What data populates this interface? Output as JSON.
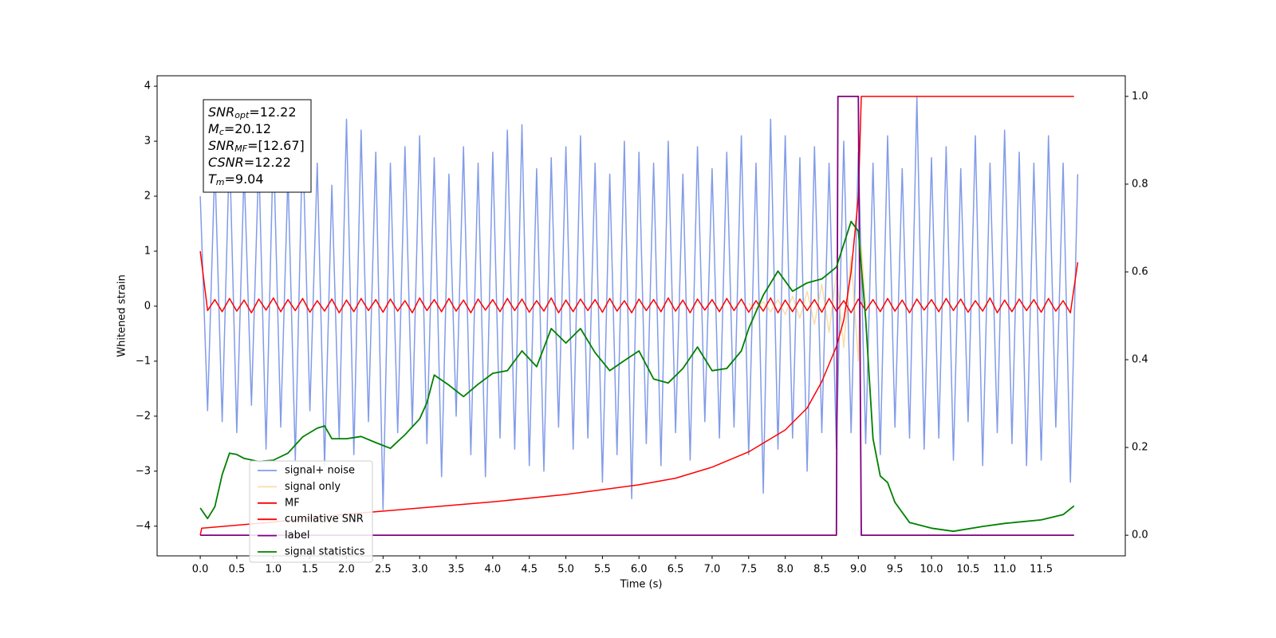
{
  "chart_data": {
    "type": "line",
    "xlabel": "Time (s)",
    "ylabel": "Whitened strain",
    "xlim": [
      -0.59,
      12.65
    ],
    "ylim": [
      -4.54,
      4.19
    ],
    "y2lim": [
      -0.047,
      1.047
    ],
    "xticks": [
      {
        "value": 0,
        "label": "0.0"
      },
      {
        "value": 0.5,
        "label": "0.5"
      },
      {
        "value": 1,
        "label": "1.0"
      },
      {
        "value": 1.5,
        "label": "1.5"
      },
      {
        "value": 2,
        "label": "2.0"
      },
      {
        "value": 2.5,
        "label": "2.5"
      },
      {
        "value": 3,
        "label": "3.0"
      },
      {
        "value": 3.5,
        "label": "3.5"
      },
      {
        "value": 4,
        "label": "4.0"
      },
      {
        "value": 4.5,
        "label": "4.5"
      },
      {
        "value": 5,
        "label": "5.0"
      },
      {
        "value": 5.5,
        "label": "5.5"
      },
      {
        "value": 6,
        "label": "6.0"
      },
      {
        "value": 6.5,
        "label": "6.5"
      },
      {
        "value": 7,
        "label": "7.0"
      },
      {
        "value": 7.5,
        "label": "7.5"
      },
      {
        "value": 8,
        "label": "8.0"
      },
      {
        "value": 8.5,
        "label": "8.5"
      },
      {
        "value": 9,
        "label": "9.0"
      },
      {
        "value": 9.5,
        "label": "9.5"
      },
      {
        "value": 10,
        "label": "10.0"
      },
      {
        "value": 10.5,
        "label": "10.5"
      },
      {
        "value": 11,
        "label": "11.0"
      },
      {
        "value": 11.5,
        "label": "11.5"
      }
    ],
    "yticks": [
      {
        "value": -4,
        "label": "−4"
      },
      {
        "value": -3,
        "label": "−3"
      },
      {
        "value": -2,
        "label": "−2"
      },
      {
        "value": -1,
        "label": "−1"
      },
      0,
      1,
      2,
      3,
      4
    ],
    "y2ticks": [
      {
        "value": 0,
        "label": "0.0"
      },
      {
        "value": 0.2,
        "label": "0.2"
      },
      {
        "value": 0.4,
        "label": "0.4"
      },
      {
        "value": 0.6,
        "label": "0.6"
      },
      {
        "value": 0.8,
        "label": "0.8"
      },
      {
        "value": 1,
        "label": "1.0"
      }
    ],
    "annotation": [
      {
        "var": "SNR",
        "sub": "opt",
        "text": "=12.22"
      },
      {
        "var": "M",
        "sub": "c",
        "text": "=20.12"
      },
      {
        "var": "SNR",
        "sub": "MF",
        "text": "=[12.67]"
      },
      {
        "var": "CSNR",
        "text": "=12.22"
      },
      {
        "var": "T",
        "sub": "m",
        "text": "=9.04"
      }
    ],
    "x": [
      0,
      0.1,
      0.2,
      0.3,
      0.4,
      0.5,
      0.6,
      0.7,
      0.8,
      0.9,
      1,
      1.1,
      1.2,
      1.3,
      1.4,
      1.5,
      1.6,
      1.7,
      1.8,
      1.9,
      2,
      2.1,
      2.2,
      2.3,
      2.4,
      2.5,
      2.6,
      2.7,
      2.8,
      2.9,
      3,
      3.1,
      3.2,
      3.3,
      3.4,
      3.5,
      3.6,
      3.7,
      3.8,
      3.9,
      4,
      4.1,
      4.2,
      4.3,
      4.4,
      4.5,
      4.6,
      4.7,
      4.8,
      4.9,
      5,
      5.1,
      5.2,
      5.3,
      5.4,
      5.5,
      5.6,
      5.7,
      5.8,
      5.9,
      6,
      6.1,
      6.2,
      6.3,
      6.4,
      6.5,
      6.6,
      6.7,
      6.8,
      6.9,
      7,
      7.1,
      7.2,
      7.3,
      7.4,
      7.5,
      7.6,
      7.7,
      7.8,
      7.9,
      8,
      8.1,
      8.2,
      8.3,
      8.4,
      8.5,
      8.6,
      8.7,
      8.8,
      8.9,
      9,
      9.1,
      9.2,
      9.3,
      9.4,
      9.5,
      9.6,
      9.7,
      9.8,
      9.9,
      10,
      10.1,
      10.2,
      10.3,
      10.4,
      10.5,
      10.6,
      10.7,
      10.8,
      10.9,
      11,
      11.1,
      11.2,
      11.3,
      11.4,
      11.5,
      11.6,
      11.7,
      11.8,
      11.9,
      12
    ],
    "series": [
      {
        "name": "signal+ noise",
        "color": "#7b96e8",
        "values": [
          2.0,
          -1.9,
          2.6,
          -2.1,
          2.9,
          -2.3,
          2.5,
          -1.8,
          2.7,
          -2.6,
          3.0,
          -2.2,
          2.4,
          -2.8,
          3.1,
          -1.9,
          2.6,
          -2.9,
          2.2,
          -2.4,
          3.4,
          -2.7,
          3.2,
          -2.1,
          2.8,
          -3.7,
          2.6,
          -2.3,
          2.9,
          -2.2,
          3.1,
          -2.5,
          2.7,
          -3.1,
          2.4,
          -2.0,
          2.9,
          -2.7,
          2.6,
          -3.1,
          2.8,
          -2.4,
          3.2,
          -2.6,
          3.3,
          -2.9,
          2.5,
          -3.0,
          2.7,
          -2.2,
          2.9,
          -2.6,
          3.1,
          -2.4,
          2.6,
          -3.2,
          2.4,
          -2.7,
          3.0,
          -3.5,
          2.8,
          -2.5,
          2.6,
          -2.9,
          3.0,
          -2.3,
          2.4,
          -2.8,
          2.9,
          -2.1,
          2.5,
          -2.4,
          2.8,
          -2.2,
          3.1,
          -2.7,
          2.6,
          -3.4,
          3.4,
          -2.6,
          3.1,
          -2.4,
          2.7,
          -3.0,
          2.9,
          -2.3,
          2.6,
          -2.6,
          3.0,
          -2.3,
          2.8,
          -2.5,
          2.6,
          -2.7,
          3.1,
          -2.2,
          2.5,
          -2.4,
          3.8,
          -2.6,
          2.7,
          -2.4,
          2.9,
          -2.8,
          2.5,
          -2.1,
          3.1,
          -2.9,
          2.6,
          -2.3,
          3.2,
          -2.5,
          2.8,
          -2.9,
          2.6,
          -2.8,
          3.1,
          -2.2,
          2.6,
          -3.2,
          2.4
        ]
      },
      {
        "name": "signal only",
        "color": "#f5c66a",
        "x": [
          7.5,
          7.6,
          7.7,
          7.8,
          7.9,
          8,
          8.1,
          8.2,
          8.3,
          8.4,
          8.5,
          8.6,
          8.7,
          8.8,
          8.9,
          9,
          9.04,
          9.1
        ],
        "values": [
          0.05,
          -0.06,
          0.08,
          -0.1,
          0.12,
          -0.15,
          0.18,
          -0.22,
          0.27,
          -0.33,
          0.4,
          -0.48,
          0.6,
          -0.75,
          0.9,
          -1.0,
          1.1,
          0
        ]
      },
      {
        "name": "MF",
        "color": "#ff0000",
        "values": [
          1.0,
          -0.08,
          0.12,
          -0.1,
          0.14,
          -0.09,
          0.11,
          -0.12,
          0.13,
          -0.07,
          0.15,
          -0.1,
          0.12,
          -0.08,
          0.14,
          -0.11,
          0.1,
          -0.09,
          0.13,
          -0.12,
          0.11,
          -0.1,
          0.14,
          -0.08,
          0.12,
          -0.11,
          0.13,
          -0.09,
          0.1,
          -0.12,
          0.15,
          -0.08,
          0.12,
          -0.1,
          0.14,
          -0.09,
          0.11,
          -0.12,
          0.13,
          -0.07,
          0.12,
          -0.1,
          0.14,
          -0.08,
          0.13,
          -0.11,
          0.1,
          -0.09,
          0.15,
          -0.12,
          0.11,
          -0.1,
          0.13,
          -0.08,
          0.12,
          -0.11,
          0.14,
          -0.09,
          0.1,
          -0.12,
          0.13,
          -0.08,
          0.12,
          -0.1,
          0.15,
          -0.09,
          0.11,
          -0.12,
          0.13,
          -0.07,
          0.12,
          -0.1,
          0.14,
          -0.08,
          0.13,
          -0.11,
          0.1,
          -0.09,
          0.15,
          -0.12,
          0.11,
          -0.1,
          0.13,
          -0.08,
          0.12,
          -0.11,
          0.14,
          -0.09,
          0.1,
          -0.12,
          0.13,
          -0.08,
          0.12,
          -0.1,
          0.14,
          -0.09,
          0.11,
          -0.12,
          0.13,
          -0.07,
          0.12,
          -0.1,
          0.14,
          -0.08,
          0.13,
          -0.11,
          0.1,
          -0.09,
          0.15,
          -0.12,
          0.11,
          -0.1,
          0.13,
          -0.08,
          0.12,
          -0.11,
          0.14,
          -0.09,
          0.1,
          -0.12,
          0.8
        ]
      },
      {
        "name": "cumilative SNR",
        "color": "#ff0000",
        "axis": "y2",
        "x": [
          0,
          0.02,
          1,
          2,
          3,
          4,
          5,
          6,
          6.5,
          7,
          7.5,
          8,
          8.3,
          8.5,
          8.7,
          8.8,
          8.9,
          9,
          9.04,
          11.95
        ],
        "values": [
          0,
          0.016,
          0.03,
          0.048,
          0.062,
          0.076,
          0.093,
          0.115,
          0.13,
          0.155,
          0.19,
          0.24,
          0.29,
          0.35,
          0.43,
          0.49,
          0.6,
          0.77,
          1.0,
          1.0
        ]
      },
      {
        "name": "label",
        "color": "#800080",
        "axis": "y2",
        "x": [
          0,
          8.7,
          8.72,
          9.0,
          9.04,
          11.95
        ],
        "values": [
          0,
          0,
          1,
          1,
          0,
          0
        ]
      },
      {
        "name": "signal statistics",
        "color": "#008000",
        "axis": "y2",
        "x": [
          0,
          0.1,
          0.2,
          0.3,
          0.4,
          0.5,
          0.6,
          0.8,
          1,
          1.2,
          1.4,
          1.6,
          1.7,
          1.8,
          2,
          2.2,
          2.4,
          2.6,
          2.8,
          3,
          3.1,
          3.2,
          3.4,
          3.6,
          3.8,
          4,
          4.2,
          4.4,
          4.6,
          4.8,
          5,
          5.2,
          5.4,
          5.6,
          5.8,
          6,
          6.2,
          6.4,
          6.6,
          6.8,
          7,
          7.2,
          7.4,
          7.5,
          7.7,
          7.9,
          8.1,
          8.3,
          8.5,
          8.7,
          8.9,
          9,
          9.1,
          9.2,
          9.3,
          9.4,
          9.5,
          9.7,
          10,
          10.3,
          10.7,
          11,
          11.5,
          11.8,
          11.95
        ],
        "values": [
          0.062,
          0.038,
          0.065,
          0.138,
          0.187,
          0.184,
          0.175,
          0.168,
          0.171,
          0.187,
          0.224,
          0.244,
          0.249,
          0.22,
          0.22,
          0.225,
          0.211,
          0.198,
          0.229,
          0.265,
          0.302,
          0.365,
          0.342,
          0.316,
          0.344,
          0.369,
          0.375,
          0.42,
          0.384,
          0.471,
          0.438,
          0.471,
          0.416,
          0.375,
          0.398,
          0.42,
          0.356,
          0.347,
          0.38,
          0.429,
          0.375,
          0.38,
          0.42,
          0.471,
          0.547,
          0.602,
          0.556,
          0.575,
          0.584,
          0.611,
          0.715,
          0.693,
          0.493,
          0.22,
          0.135,
          0.12,
          0.075,
          0.029,
          0.016,
          0.009,
          0.02,
          0.027,
          0.035,
          0.047,
          0.067
        ]
      }
    ]
  }
}
